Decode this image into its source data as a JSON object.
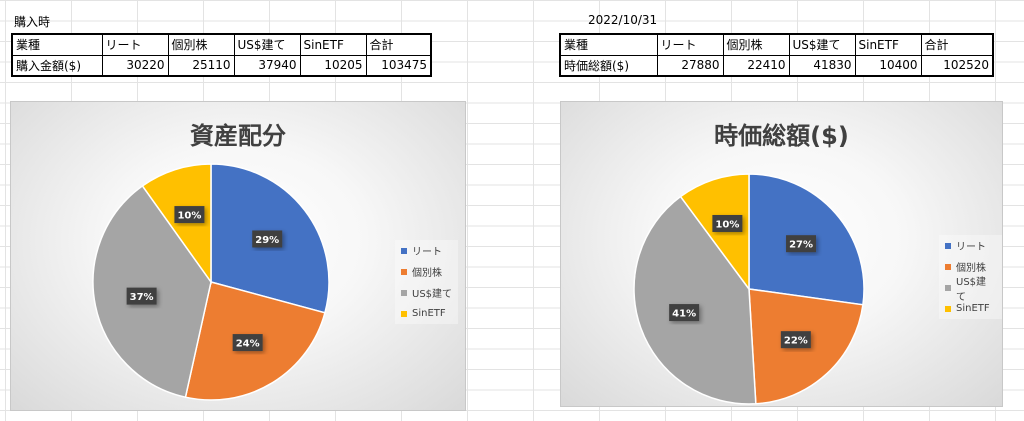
{
  "left_section": {
    "caption": "購入時",
    "table": {
      "headers": [
        "業種",
        "リート",
        "個別株",
        "US$建て",
        "SinETF",
        "合計"
      ],
      "row": [
        "購入金額($)",
        "30220",
        "25110",
        "37940",
        "10205",
        "103475"
      ]
    }
  },
  "right_section": {
    "caption": "2022/10/31",
    "table": {
      "headers": [
        "業種",
        "リート",
        "個別株",
        "US$建て",
        "SinETF",
        "合計"
      ],
      "row": [
        "時価総額($)",
        "27880",
        "22410",
        "41830",
        "10400",
        "102520"
      ]
    }
  },
  "colors": {
    "リート": "#4472C4",
    "個別株": "#ED7D31",
    "US$建て": "#A5A5A5",
    "SinETF": "#FFC000"
  },
  "chart_data": [
    {
      "type": "pie",
      "title": "資産配分",
      "categories": [
        "リート",
        "個別株",
        "US$建て",
        "SinETF"
      ],
      "legend_labels": [
        "リート",
        "個別株",
        "US$建て",
        "SinETF"
      ],
      "values": [
        30220,
        25110,
        37940,
        10205
      ],
      "data_labels": [
        "29%",
        "24%",
        "37%",
        "10%"
      ],
      "legend": "right"
    },
    {
      "type": "pie",
      "title": "時価総額($)",
      "categories": [
        "リート",
        "個別株",
        "US$建て",
        "SinETF"
      ],
      "legend_labels": [
        "リート",
        "個別株",
        "US$建て",
        "SinETF"
      ],
      "values": [
        27880,
        22410,
        41830,
        10400
      ],
      "data_labels": [
        "27%",
        "22%",
        "41%",
        "10%"
      ],
      "legend": "right"
    }
  ]
}
